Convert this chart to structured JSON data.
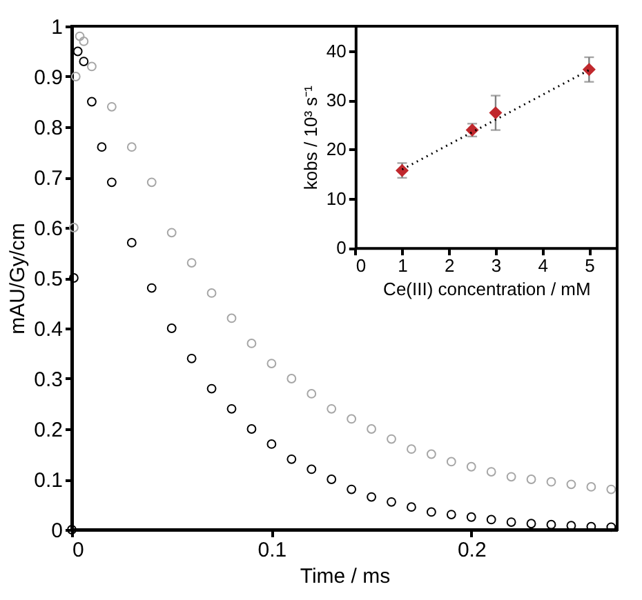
{
  "chart_data": [
    {
      "type": "scatter",
      "xlabel": "Time / ms",
      "ylabel": "mAU/Gy/cm",
      "xlim": [
        0,
        0.273
      ],
      "xticks": [
        0,
        0.1,
        0.2
      ],
      "ylim": [
        0,
        1
      ],
      "yticks": [
        0,
        0.1,
        0.2,
        0.3,
        0.4,
        0.5,
        0.6,
        0.7,
        0.8,
        0.9,
        1
      ],
      "marker": "circle",
      "series": [
        {
          "color": "#000000",
          "x": [
            0,
            0.001,
            0.003,
            0.006,
            0.01,
            0.015,
            0.02,
            0.03,
            0.04,
            0.05,
            0.06,
            0.07,
            0.08,
            0.09,
            0.1,
            0.11,
            0.12,
            0.13,
            0.14,
            0.15,
            0.16,
            0.17,
            0.18,
            0.19,
            0.2,
            0.21,
            0.22,
            0.23,
            0.24,
            0.25,
            0.26,
            0.27
          ],
          "values": [
            0,
            0.5,
            0.95,
            0.93,
            0.85,
            0.76,
            0.69,
            0.57,
            0.48,
            0.4,
            0.34,
            0.28,
            0.24,
            0.2,
            0.17,
            0.14,
            0.12,
            0.1,
            0.08,
            0.065,
            0.055,
            0.045,
            0.035,
            0.03,
            0.025,
            0.02,
            0.015,
            0.012,
            0.01,
            0.008,
            0.006,
            0.005
          ]
        },
        {
          "color": "#a6a6a6",
          "x": [
            0.001,
            0.002,
            0.004,
            0.006,
            0.01,
            0.02,
            0.03,
            0.04,
            0.05,
            0.06,
            0.07,
            0.08,
            0.09,
            0.1,
            0.11,
            0.12,
            0.13,
            0.14,
            0.15,
            0.16,
            0.17,
            0.18,
            0.19,
            0.2,
            0.21,
            0.22,
            0.23,
            0.24,
            0.25,
            0.26,
            0.27
          ],
          "values": [
            0.6,
            0.9,
            0.98,
            0.97,
            0.92,
            0.84,
            0.76,
            0.69,
            0.59,
            0.53,
            0.47,
            0.42,
            0.37,
            0.33,
            0.3,
            0.27,
            0.24,
            0.22,
            0.2,
            0.18,
            0.16,
            0.15,
            0.135,
            0.125,
            0.115,
            0.105,
            0.1,
            0.095,
            0.09,
            0.085,
            0.08
          ]
        }
      ]
    },
    {
      "type": "scatter",
      "xlabel": "Ce(III) concentration / mM",
      "ylabel": "kobs / 10³ s⁻¹",
      "xlim": [
        0,
        5.6
      ],
      "xticks": [
        0,
        1,
        2,
        3,
        4,
        5
      ],
      "ylim": [
        0,
        45
      ],
      "yticks": [
        0,
        10,
        20,
        30,
        40
      ],
      "series": [
        {
          "color": "#c0282d",
          "marker": "diamond",
          "x": [
            1,
            2.5,
            3,
            5
          ],
          "values": [
            15.7,
            23.9,
            27.4,
            36.2
          ],
          "errors": [
            1.5,
            1.3,
            3.5,
            2.5
          ]
        },
        {
          "type": "line",
          "line_style": "dotted",
          "color": "#000000",
          "x": [
            1,
            5
          ],
          "values": [
            15.9,
            36.1
          ]
        }
      ]
    }
  ]
}
